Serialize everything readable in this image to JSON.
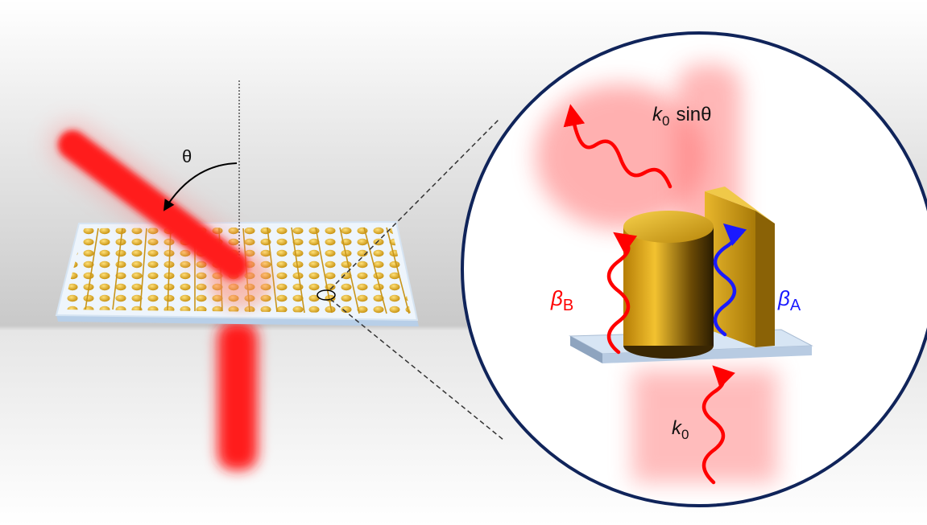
{
  "labels": {
    "angle": "θ",
    "incidence_wave_symbol": "k",
    "incidence_wave_sub": "0",
    "incidence_wave_trig": "sinθ",
    "mode_b_symbol": "β",
    "mode_b_sub": "B",
    "mode_a_symbol": "β",
    "mode_a_sub": "A",
    "input_wave_symbol": "k",
    "input_wave_sub": "0"
  },
  "colors": {
    "beam": "#ff1a1a",
    "mode_b": "#ff0000",
    "mode_a": "#1a1aff",
    "gold": "#d9a21a",
    "circle_border": "#10245a",
    "substrate": "#cfe0f3"
  }
}
